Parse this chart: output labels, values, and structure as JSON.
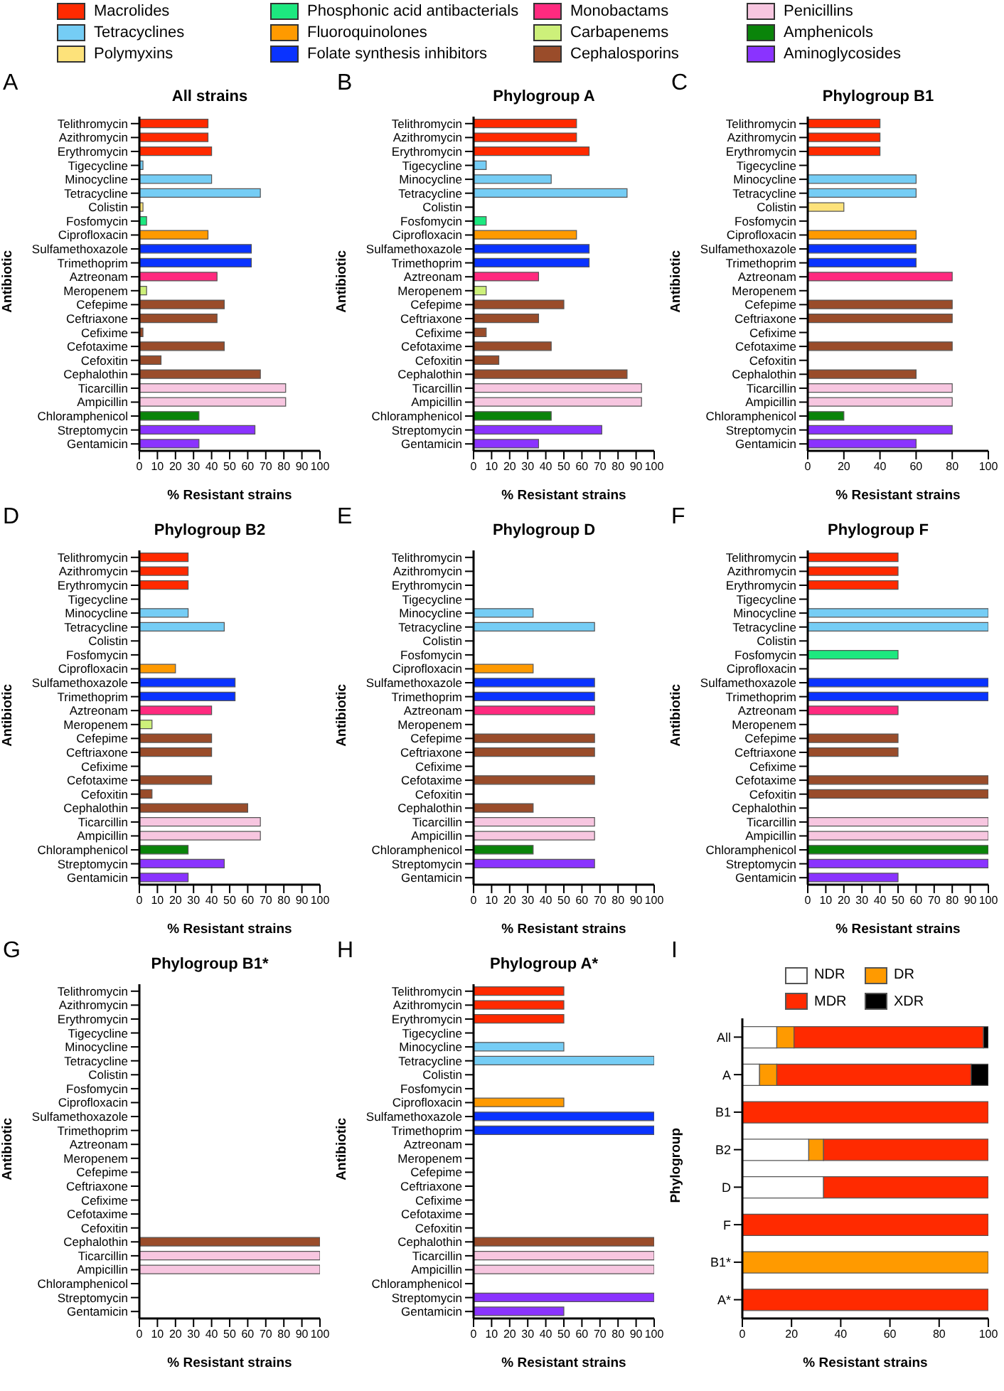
{
  "chart_data": [
    {
      "type": "bar",
      "orientation": "horizontal",
      "stacked": true,
      "title": "All strains",
      "xlabel": "% Resistant strains",
      "ylabel": "Antibiotic",
      "annotations": [
        "A"
      ],
      "legend": "top",
      "categories": [
        "Telithromycin",
        "Azithromycin",
        "Erythromycin",
        "Tigecycline",
        "Minocycline",
        "Tetracycline",
        "Colistin",
        "Fosfomycin",
        "Ciprofloxacin",
        "Sulfamethoxazole",
        "Trimethoprim",
        "Aztreonam",
        "Meropenem",
        "Cefepime",
        "Ceftriaxone",
        "Cefixime",
        "Cefotaxime",
        "Cefoxitin",
        "Cephalothin",
        "Ticarcillin",
        "Ampicillin",
        "Chloramphenicol",
        "Streptomycin",
        "Gentamicin"
      ],
      "xlim": [
        0,
        100
      ],
      "xticks": [
        0,
        10,
        20,
        30,
        40,
        50,
        60,
        70,
        80,
        90,
        100
      ],
      "series": [
        {
          "name": "Macrolides",
          "color": "#ff2a00",
          "values": [
            38,
            38,
            40,
            null,
            null,
            null,
            null,
            null,
            null,
            null,
            null,
            null,
            null,
            null,
            null,
            null,
            null,
            null,
            null,
            null,
            null,
            null,
            null,
            null
          ]
        },
        {
          "name": "Tetracyclines",
          "color": "#75cdf5",
          "values": [
            null,
            null,
            null,
            2,
            40,
            67,
            null,
            null,
            null,
            null,
            null,
            null,
            null,
            null,
            null,
            null,
            null,
            null,
            null,
            null,
            null,
            null,
            null,
            null
          ]
        },
        {
          "name": "Polymyxins",
          "color": "#fde27a",
          "values": [
            null,
            null,
            null,
            null,
            null,
            null,
            2,
            null,
            null,
            null,
            null,
            null,
            null,
            null,
            null,
            null,
            null,
            null,
            null,
            null,
            null,
            null,
            null,
            null
          ]
        },
        {
          "name": "Phosphonic acid antibacterials",
          "color": "#1de87f",
          "values": [
            null,
            null,
            null,
            null,
            null,
            null,
            null,
            4,
            null,
            null,
            null,
            null,
            null,
            null,
            null,
            null,
            null,
            null,
            null,
            null,
            null,
            null,
            null,
            null
          ]
        },
        {
          "name": "Fluoroquinolones",
          "color": "#ff9a00",
          "values": [
            null,
            null,
            null,
            null,
            null,
            null,
            null,
            null,
            38,
            null,
            null,
            null,
            null,
            null,
            null,
            null,
            null,
            null,
            null,
            null,
            null,
            null,
            null,
            null
          ]
        },
        {
          "name": "Folate synthesis inhibitors",
          "color": "#0a33ff",
          "values": [
            null,
            null,
            null,
            null,
            null,
            null,
            null,
            null,
            null,
            62,
            62,
            null,
            null,
            null,
            null,
            null,
            null,
            null,
            null,
            null,
            null,
            null,
            null,
            null
          ]
        },
        {
          "name": "Monobactams",
          "color": "#ff2a7f",
          "values": [
            null,
            null,
            null,
            null,
            null,
            null,
            null,
            null,
            null,
            null,
            null,
            43,
            null,
            null,
            null,
            null,
            null,
            null,
            null,
            null,
            null,
            null,
            null,
            null
          ]
        },
        {
          "name": "Carbapenems",
          "color": "#cdf07a",
          "values": [
            null,
            null,
            null,
            null,
            null,
            null,
            null,
            null,
            null,
            null,
            null,
            null,
            4,
            null,
            null,
            null,
            null,
            null,
            null,
            null,
            null,
            null,
            null,
            null
          ]
        },
        {
          "name": "Cephalosporins",
          "color": "#9a4c2a",
          "values": [
            null,
            null,
            null,
            null,
            null,
            null,
            null,
            null,
            null,
            null,
            null,
            null,
            null,
            47,
            43,
            2,
            47,
            12,
            67,
            null,
            null,
            null,
            null,
            null
          ]
        },
        {
          "name": "Penicillins",
          "color": "#f7c6e0",
          "values": [
            null,
            null,
            null,
            null,
            null,
            null,
            null,
            null,
            null,
            null,
            null,
            null,
            null,
            null,
            null,
            null,
            null,
            null,
            null,
            81,
            81,
            null,
            null,
            null
          ]
        },
        {
          "name": "Amphenicols",
          "color": "#0a840a",
          "values": [
            null,
            null,
            null,
            null,
            null,
            null,
            null,
            null,
            null,
            null,
            null,
            null,
            null,
            null,
            null,
            null,
            null,
            null,
            null,
            null,
            null,
            33,
            null,
            null
          ]
        },
        {
          "name": "Aminoglycosides",
          "color": "#8a33ff",
          "values": [
            null,
            null,
            null,
            null,
            null,
            null,
            null,
            null,
            null,
            null,
            null,
            null,
            null,
            null,
            null,
            null,
            null,
            null,
            null,
            null,
            null,
            null,
            64,
            33
          ]
        }
      ]
    },
    {
      "type": "bar",
      "orientation": "horizontal",
      "title": "Phylogroup A",
      "xlabel": "% Resistant strains",
      "ylabel": "Antibiotic",
      "annotations": [
        "B"
      ],
      "categories": [
        "Telithromycin",
        "Azithromycin",
        "Erythromycin",
        "Tigecycline",
        "Minocycline",
        "Tetracycline",
        "Colistin",
        "Fosfomycin",
        "Ciprofloxacin",
        "Sulfamethoxazole",
        "Trimethoprim",
        "Aztreonam",
        "Meropenem",
        "Cefepime",
        "Ceftriaxone",
        "Cefixime",
        "Cefotaxime",
        "Cefoxitin",
        "Cephalothin",
        "Ticarcillin",
        "Ampicillin",
        "Chloramphenicol",
        "Streptomycin",
        "Gentamicin"
      ],
      "xlim": [
        0,
        100
      ],
      "xticks": [
        0,
        10,
        20,
        30,
        40,
        50,
        60,
        70,
        80,
        90,
        100
      ],
      "values": [
        57,
        57,
        64,
        7,
        43,
        85,
        0,
        7,
        57,
        64,
        64,
        36,
        7,
        50,
        36,
        7,
        43,
        14,
        85,
        93,
        93,
        43,
        71,
        36
      ],
      "colors": [
        "#ff2a00",
        "#ff2a00",
        "#ff2a00",
        "#75cdf5",
        "#75cdf5",
        "#75cdf5",
        "#fde27a",
        "#1de87f",
        "#ff9a00",
        "#0a33ff",
        "#0a33ff",
        "#ff2a7f",
        "#cdf07a",
        "#9a4c2a",
        "#9a4c2a",
        "#9a4c2a",
        "#9a4c2a",
        "#9a4c2a",
        "#9a4c2a",
        "#f7c6e0",
        "#f7c6e0",
        "#0a840a",
        "#8a33ff",
        "#8a33ff"
      ]
    },
    {
      "type": "bar",
      "orientation": "horizontal",
      "title": "Phylogroup B1",
      "xlabel": "% Resistant strains",
      "ylabel": "Antibiotic",
      "annotations": [
        "C"
      ],
      "categories": [
        "Telithromycin",
        "Azithromycin",
        "Erythromycin",
        "Tigecycline",
        "Minocycline",
        "Tetracycline",
        "Colistin",
        "Fosfomycin",
        "Ciprofloxacin",
        "Sulfamethoxazole",
        "Trimethoprim",
        "Aztreonam",
        "Meropenem",
        "Cefepime",
        "Ceftriaxone",
        "Cefixime",
        "Cefotaxime",
        "Cefoxitin",
        "Cephalothin",
        "Ticarcillin",
        "Ampicillin",
        "Chloramphenicol",
        "Streptomycin",
        "Gentamicin"
      ],
      "xlim": [
        0,
        100
      ],
      "xticks": [
        0,
        20,
        40,
        60,
        80,
        100
      ],
      "values": [
        40,
        40,
        40,
        0,
        60,
        60,
        20,
        0,
        60,
        60,
        60,
        80,
        0,
        80,
        80,
        0,
        80,
        0,
        60,
        80,
        80,
        20,
        80,
        60
      ],
      "colors": [
        "#ff2a00",
        "#ff2a00",
        "#ff2a00",
        "#75cdf5",
        "#75cdf5",
        "#75cdf5",
        "#fde27a",
        "#1de87f",
        "#ff9a00",
        "#0a33ff",
        "#0a33ff",
        "#ff2a7f",
        "#cdf07a",
        "#9a4c2a",
        "#9a4c2a",
        "#9a4c2a",
        "#9a4c2a",
        "#9a4c2a",
        "#9a4c2a",
        "#f7c6e0",
        "#f7c6e0",
        "#0a840a",
        "#8a33ff",
        "#8a33ff"
      ]
    },
    {
      "type": "bar",
      "orientation": "horizontal",
      "title": "Phylogroup B2",
      "xlabel": "% Resistant strains",
      "ylabel": "Antibiotic",
      "annotations": [
        "D"
      ],
      "categories": [
        "Telithromycin",
        "Azithromycin",
        "Erythromycin",
        "Tigecycline",
        "Minocycline",
        "Tetracycline",
        "Colistin",
        "Fosfomycin",
        "Ciprofloxacin",
        "Sulfamethoxazole",
        "Trimethoprim",
        "Aztreonam",
        "Meropenem",
        "Cefepime",
        "Ceftriaxone",
        "Cefixime",
        "Cefotaxime",
        "Cefoxitin",
        "Cephalothin",
        "Ticarcillin",
        "Ampicillin",
        "Chloramphenicol",
        "Streptomycin",
        "Gentamicin"
      ],
      "xlim": [
        0,
        100
      ],
      "xticks": [
        0,
        10,
        20,
        30,
        40,
        50,
        60,
        70,
        80,
        90,
        100
      ],
      "values": [
        27,
        27,
        27,
        0,
        27,
        47,
        0,
        0,
        20,
        53,
        53,
        40,
        7,
        40,
        40,
        0,
        40,
        7,
        60,
        67,
        67,
        27,
        47,
        27
      ],
      "colors": [
        "#ff2a00",
        "#ff2a00",
        "#ff2a00",
        "#75cdf5",
        "#75cdf5",
        "#75cdf5",
        "#fde27a",
        "#1de87f",
        "#ff9a00",
        "#0a33ff",
        "#0a33ff",
        "#ff2a7f",
        "#cdf07a",
        "#9a4c2a",
        "#9a4c2a",
        "#9a4c2a",
        "#9a4c2a",
        "#9a4c2a",
        "#9a4c2a",
        "#f7c6e0",
        "#f7c6e0",
        "#0a840a",
        "#8a33ff",
        "#8a33ff"
      ]
    },
    {
      "type": "bar",
      "orientation": "horizontal",
      "title": "Phylogroup D",
      "xlabel": "% Resistant strains",
      "ylabel": "Antibiotic",
      "annotations": [
        "E"
      ],
      "categories": [
        "Telithromycin",
        "Azithromycin",
        "Erythromycin",
        "Tigecycline",
        "Minocycline",
        "Tetracycline",
        "Colistin",
        "Fosfomycin",
        "Ciprofloxacin",
        "Sulfamethoxazole",
        "Trimethoprim",
        "Aztreonam",
        "Meropenem",
        "Cefepime",
        "Ceftriaxone",
        "Cefixime",
        "Cefotaxime",
        "Cefoxitin",
        "Cephalothin",
        "Ticarcillin",
        "Ampicillin",
        "Chloramphenicol",
        "Streptomycin",
        "Gentamicin"
      ],
      "xlim": [
        0,
        100
      ],
      "xticks": [
        0,
        10,
        20,
        30,
        40,
        50,
        60,
        70,
        80,
        90,
        100
      ],
      "values": [
        0,
        0,
        0,
        0,
        33,
        67,
        0,
        0,
        33,
        67,
        67,
        67,
        0,
        67,
        67,
        0,
        67,
        0,
        33,
        67,
        67,
        33,
        67,
        0
      ],
      "colors": [
        "#ff2a00",
        "#ff2a00",
        "#ff2a00",
        "#75cdf5",
        "#75cdf5",
        "#75cdf5",
        "#fde27a",
        "#1de87f",
        "#ff9a00",
        "#0a33ff",
        "#0a33ff",
        "#ff2a7f",
        "#cdf07a",
        "#9a4c2a",
        "#9a4c2a",
        "#9a4c2a",
        "#9a4c2a",
        "#9a4c2a",
        "#9a4c2a",
        "#f7c6e0",
        "#f7c6e0",
        "#0a840a",
        "#8a33ff",
        "#8a33ff"
      ]
    },
    {
      "type": "bar",
      "orientation": "horizontal",
      "title": "Phylogroup F",
      "xlabel": "% Resistant strains",
      "ylabel": "Antibiotic",
      "annotations": [
        "F"
      ],
      "categories": [
        "Telithromycin",
        "Azithromycin",
        "Erythromycin",
        "Tigecycline",
        "Minocycline",
        "Tetracycline",
        "Colistin",
        "Fosfomycin",
        "Ciprofloxacin",
        "Sulfamethoxazole",
        "Trimethoprim",
        "Aztreonam",
        "Meropenem",
        "Cefepime",
        "Ceftriaxone",
        "Cefixime",
        "Cefotaxime",
        "Cefoxitin",
        "Cephalothin",
        "Ticarcillin",
        "Ampicillin",
        "Chloramphenicol",
        "Streptomycin",
        "Gentamicin"
      ],
      "xlim": [
        0,
        100
      ],
      "xticks": [
        0,
        10,
        20,
        30,
        40,
        50,
        60,
        70,
        80,
        90,
        100
      ],
      "values": [
        50,
        50,
        50,
        0,
        100,
        100,
        0,
        50,
        0,
        100,
        100,
        50,
        0,
        50,
        50,
        0,
        100,
        100,
        0,
        100,
        100,
        100,
        100,
        50
      ],
      "colors": [
        "#ff2a00",
        "#ff2a00",
        "#ff2a00",
        "#75cdf5",
        "#75cdf5",
        "#75cdf5",
        "#fde27a",
        "#1de87f",
        "#ff9a00",
        "#0a33ff",
        "#0a33ff",
        "#ff2a7f",
        "#cdf07a",
        "#9a4c2a",
        "#9a4c2a",
        "#9a4c2a",
        "#9a4c2a",
        "#9a4c2a",
        "#9a4c2a",
        "#f7c6e0",
        "#f7c6e0",
        "#0a840a",
        "#8a33ff",
        "#8a33ff"
      ]
    },
    {
      "type": "bar",
      "orientation": "horizontal",
      "title": "Phylogroup B1*",
      "xlabel": "% Resistant strains",
      "ylabel": "Antibiotic",
      "annotations": [
        "G"
      ],
      "categories": [
        "Telithromycin",
        "Azithromycin",
        "Erythromycin",
        "Tigecycline",
        "Minocycline",
        "Tetracycline",
        "Colistin",
        "Fosfomycin",
        "Ciprofloxacin",
        "Sulfamethoxazole",
        "Trimethoprim",
        "Aztreonam",
        "Meropenem",
        "Cefepime",
        "Ceftriaxone",
        "Cefixime",
        "Cefotaxime",
        "Cefoxitin",
        "Cephalothin",
        "Ticarcillin",
        "Ampicillin",
        "Chloramphenicol",
        "Streptomycin",
        "Gentamicin"
      ],
      "xlim": [
        0,
        100
      ],
      "xticks": [
        0,
        10,
        20,
        30,
        40,
        50,
        60,
        70,
        80,
        90,
        100
      ],
      "values": [
        0,
        0,
        0,
        0,
        0,
        0,
        0,
        0,
        0,
        0,
        0,
        0,
        0,
        0,
        0,
        0,
        0,
        0,
        100,
        100,
        100,
        0,
        0,
        0
      ],
      "colors": [
        "#ff2a00",
        "#ff2a00",
        "#ff2a00",
        "#75cdf5",
        "#75cdf5",
        "#75cdf5",
        "#fde27a",
        "#1de87f",
        "#ff9a00",
        "#0a33ff",
        "#0a33ff",
        "#ff2a7f",
        "#cdf07a",
        "#9a4c2a",
        "#9a4c2a",
        "#9a4c2a",
        "#9a4c2a",
        "#9a4c2a",
        "#9a4c2a",
        "#f7c6e0",
        "#f7c6e0",
        "#0a840a",
        "#8a33ff",
        "#8a33ff"
      ]
    },
    {
      "type": "bar",
      "orientation": "horizontal",
      "title": "Phylogroup A*",
      "xlabel": "% Resistant strains",
      "ylabel": "Antibiotic",
      "annotations": [
        "H"
      ],
      "categories": [
        "Telithromycin",
        "Azithromycin",
        "Erythromycin",
        "Tigecycline",
        "Minocycline",
        "Tetracycline",
        "Colistin",
        "Fosfomycin",
        "Ciprofloxacin",
        "Sulfamethoxazole",
        "Trimethoprim",
        "Aztreonam",
        "Meropenem",
        "Cefepime",
        "Ceftriaxone",
        "Cefixime",
        "Cefotaxime",
        "Cefoxitin",
        "Cephalothin",
        "Ticarcillin",
        "Ampicillin",
        "Chloramphenicol",
        "Streptomycin",
        "Gentamicin"
      ],
      "xlim": [
        0,
        100
      ],
      "xticks": [
        0,
        10,
        20,
        30,
        40,
        50,
        60,
        70,
        80,
        90,
        100
      ],
      "values": [
        50,
        50,
        50,
        0,
        50,
        100,
        0,
        0,
        50,
        100,
        100,
        0,
        0,
        0,
        0,
        0,
        0,
        0,
        100,
        100,
        100,
        0,
        100,
        50
      ],
      "colors": [
        "#ff2a00",
        "#ff2a00",
        "#ff2a00",
        "#75cdf5",
        "#75cdf5",
        "#75cdf5",
        "#fde27a",
        "#1de87f",
        "#ff9a00",
        "#0a33ff",
        "#0a33ff",
        "#ff2a7f",
        "#cdf07a",
        "#9a4c2a",
        "#9a4c2a",
        "#9a4c2a",
        "#9a4c2a",
        "#9a4c2a",
        "#9a4c2a",
        "#f7c6e0",
        "#f7c6e0",
        "#0a840a",
        "#8a33ff",
        "#8a33ff"
      ]
    },
    {
      "type": "bar",
      "orientation": "horizontal",
      "stacked": true,
      "xlabel": "% Resistant strains",
      "ylabel": "Phylogroup",
      "annotations": [
        "I"
      ],
      "legend": "top",
      "categories": [
        "All",
        "A",
        "B1",
        "B2",
        "D",
        "F",
        "B1*",
        "A*"
      ],
      "xlim": [
        0,
        100
      ],
      "xticks": [
        0,
        20,
        40,
        60,
        80,
        100
      ],
      "series": [
        {
          "name": "NDR",
          "color": "#ffffff",
          "values": [
            14,
            7,
            null,
            27,
            33,
            null,
            null,
            null
          ]
        },
        {
          "name": "DR",
          "color": "#ff9a00",
          "values": [
            7,
            7,
            null,
            6,
            null,
            null,
            100,
            null
          ]
        },
        {
          "name": "MDR",
          "color": "#ff2a00",
          "values": [
            77,
            79,
            100,
            67,
            67,
            100,
            null,
            100
          ]
        },
        {
          "name": "XDR",
          "color": "#000000",
          "values": [
            2,
            7,
            null,
            null,
            null,
            null,
            null,
            null
          ]
        }
      ]
    }
  ]
}
